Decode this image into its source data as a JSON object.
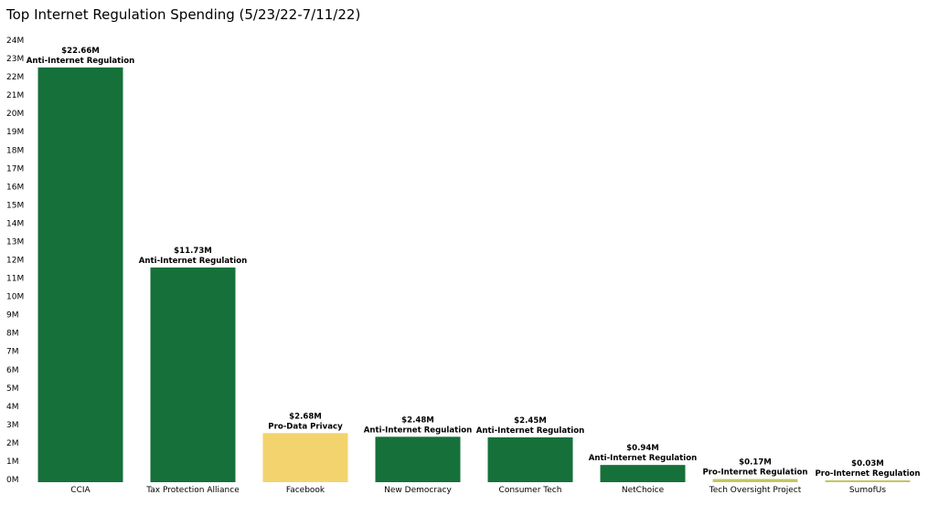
{
  "chart_data": {
    "type": "bar",
    "title": "Top Internet Regulation Spending (5/23/22-7/11/22)",
    "xlabel": "",
    "ylabel": "",
    "ylim": [
      0,
      24
    ],
    "yticks": [
      "0M",
      "1M",
      "2M",
      "3M",
      "4M",
      "5M",
      "6M",
      "7M",
      "8M",
      "9M",
      "10M",
      "11M",
      "12M",
      "13M",
      "14M",
      "15M",
      "16M",
      "17M",
      "18M",
      "19M",
      "20M",
      "21M",
      "22M",
      "23M",
      "24M"
    ],
    "grid": false,
    "categories": [
      "CCIA",
      "Tax Protection Alliance",
      "Facebook",
      "New Democracy",
      "Consumer Tech",
      "NetChoice",
      "Tech Oversight Project",
      "SumofUs"
    ],
    "values": [
      22.66,
      11.73,
      2.68,
      2.48,
      2.45,
      0.94,
      0.17,
      0.03
    ],
    "value_labels": [
      "$22.66M",
      "$11.73M",
      "$2.68M",
      "$2.48M",
      "$2.45M",
      "$0.94M",
      "$0.17M",
      "$0.03M"
    ],
    "groups": [
      "Anti-Internet Regulation",
      "Anti-Internet Regulation",
      "Pro-Data Privacy",
      "Anti-Internet Regulation",
      "Anti-Internet Regulation",
      "Anti-Internet Regulation",
      "Pro-Internet Regulation",
      "Pro-Internet Regulation"
    ],
    "group_colors": {
      "Anti-Internet Regulation": "#16703a",
      "Pro-Data Privacy": "#f3d36d",
      "Pro-Internet Regulation": "#c4c55e"
    }
  }
}
